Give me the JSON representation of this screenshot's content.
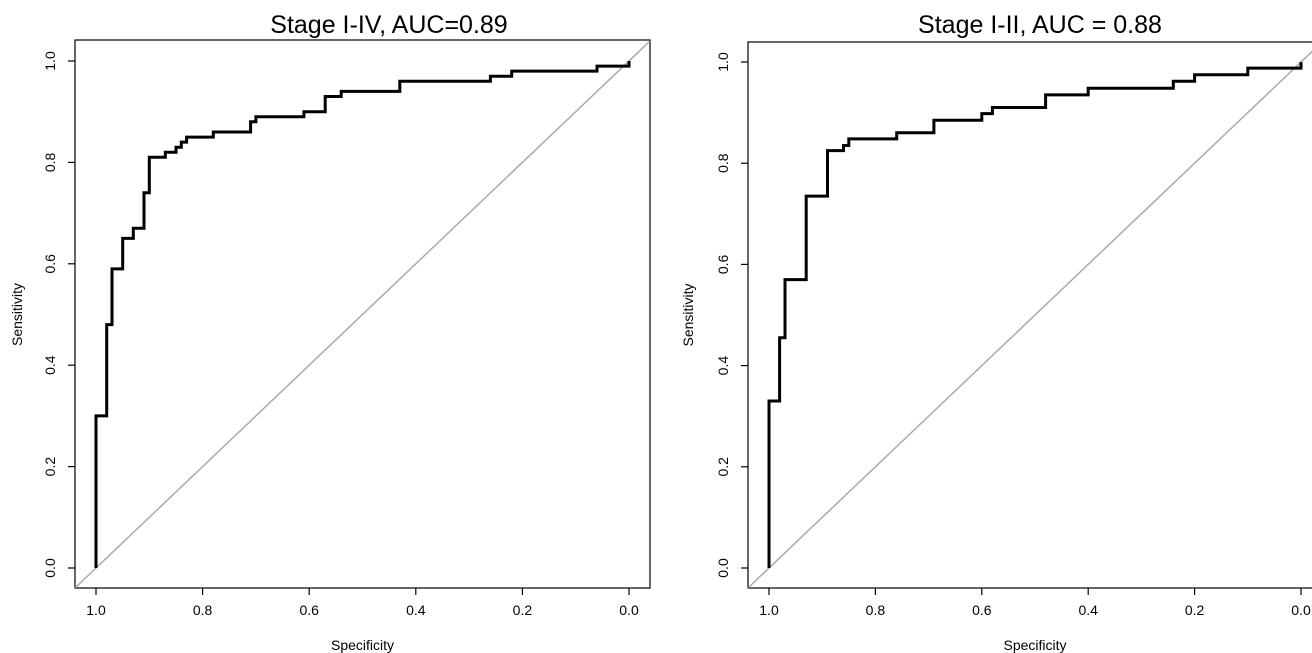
{
  "chart_data": [
    {
      "type": "line",
      "title": "Stage I-IV,  AUC=0.89",
      "xlabel": "Specificity",
      "ylabel": "Sensitivity",
      "x_reversed": true,
      "xlim": [
        1.0,
        0.0
      ],
      "ylim": [
        0.0,
        1.0
      ],
      "xticks": [
        "1.0",
        "0.8",
        "0.6",
        "0.4",
        "0.2",
        "0.0"
      ],
      "yticks": [
        "0.0",
        "0.2",
        "0.4",
        "0.6",
        "0.8",
        "1.0"
      ],
      "grid": false,
      "colors": {
        "curve": "#000000",
        "reference": "#aaaaaa"
      },
      "series": [
        {
          "x": [
            1.0,
            1.0,
            0.98,
            0.98,
            0.97,
            0.97,
            0.95,
            0.95,
            0.93,
            0.93,
            0.91,
            0.91,
            0.9,
            0.9,
            0.87,
            0.87,
            0.85,
            0.85,
            0.84,
            0.84,
            0.83,
            0.83,
            0.78,
            0.78,
            0.71,
            0.71,
            0.7,
            0.7,
            0.61,
            0.61,
            0.57,
            0.57,
            0.54,
            0.54,
            0.43,
            0.43,
            0.26,
            0.26,
            0.22,
            0.22,
            0.06,
            0.06,
            0.0,
            0.0
          ],
          "y": [
            0.0,
            0.3,
            0.3,
            0.48,
            0.48,
            0.59,
            0.59,
            0.65,
            0.65,
            0.67,
            0.67,
            0.74,
            0.74,
            0.81,
            0.81,
            0.82,
            0.82,
            0.83,
            0.83,
            0.84,
            0.84,
            0.85,
            0.85,
            0.86,
            0.86,
            0.88,
            0.88,
            0.89,
            0.89,
            0.9,
            0.9,
            0.93,
            0.93,
            0.94,
            0.94,
            0.96,
            0.96,
            0.97,
            0.97,
            0.98,
            0.98,
            0.99,
            0.99,
            1.0
          ]
        }
      ]
    },
    {
      "type": "line",
      "title": "Stage I-II, AUC = 0.88",
      "xlabel": "Specificity",
      "ylabel": "Sensitivity",
      "x_reversed": true,
      "xlim": [
        1.0,
        0.0
      ],
      "ylim": [
        0.0,
        1.0
      ],
      "xticks": [
        "1.0",
        "0.8",
        "0.6",
        "0.4",
        "0.2",
        "0.0"
      ],
      "yticks": [
        "0.0",
        "0.2",
        "0.4",
        "0.6",
        "0.8",
        "1.0"
      ],
      "grid": false,
      "colors": {
        "curve": "#000000",
        "reference": "#aaaaaa"
      },
      "series": [
        {
          "x": [
            1.0,
            1.0,
            0.98,
            0.98,
            0.97,
            0.97,
            0.93,
            0.93,
            0.89,
            0.89,
            0.86,
            0.86,
            0.85,
            0.85,
            0.76,
            0.76,
            0.69,
            0.69,
            0.6,
            0.6,
            0.58,
            0.58,
            0.48,
            0.48,
            0.4,
            0.4,
            0.24,
            0.24,
            0.2,
            0.2,
            0.1,
            0.1,
            0.0,
            0.0
          ],
          "y": [
            0.0,
            0.33,
            0.33,
            0.455,
            0.455,
            0.57,
            0.57,
            0.735,
            0.735,
            0.825,
            0.825,
            0.835,
            0.835,
            0.848,
            0.848,
            0.86,
            0.86,
            0.885,
            0.885,
            0.898,
            0.898,
            0.91,
            0.91,
            0.935,
            0.935,
            0.948,
            0.948,
            0.962,
            0.962,
            0.975,
            0.975,
            0.988,
            0.988,
            1.0
          ]
        }
      ]
    }
  ]
}
